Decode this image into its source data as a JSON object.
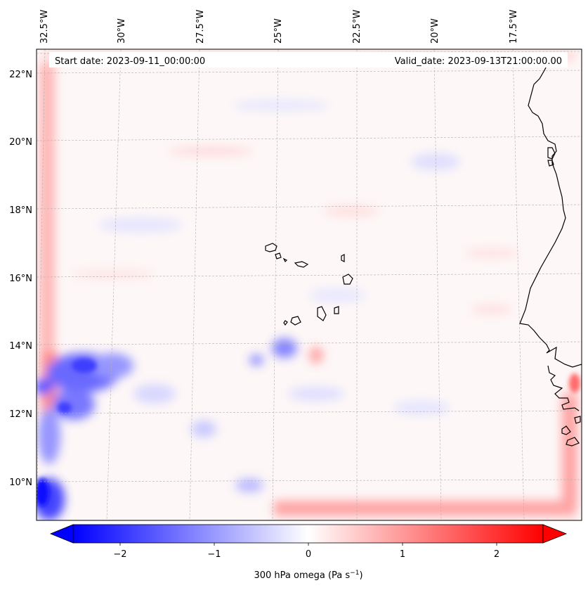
{
  "header": {
    "start_date": "Start date: 2023-09-11_00:00:00",
    "valid_date": "Valid_date: 2023-09-13T21:00:00.00"
  },
  "axes": {
    "longitude_labels": [
      "32.5°W",
      "30°W",
      "27.5°W",
      "25°W",
      "22.5°W",
      "20°W",
      "17.5°W"
    ],
    "latitude_labels": [
      "22°N",
      "20°N",
      "18°N",
      "16°N",
      "14°N",
      "12°N",
      "10°N"
    ]
  },
  "colorbar": {
    "label_main": "300 hPa omega (Pa s",
    "label_exp": "−1",
    "label_close": ")",
    "ticks": [
      "−2",
      "−1",
      "0",
      "1",
      "2"
    ],
    "range": [
      -2.5,
      2.5
    ],
    "colormap": "bwr",
    "low_color": "#0000ff",
    "mid_color": "#ffffff",
    "high_color": "#ff0000"
  },
  "colors": {
    "coastline": "#000000",
    "gridline": "#b0b0b0"
  }
}
